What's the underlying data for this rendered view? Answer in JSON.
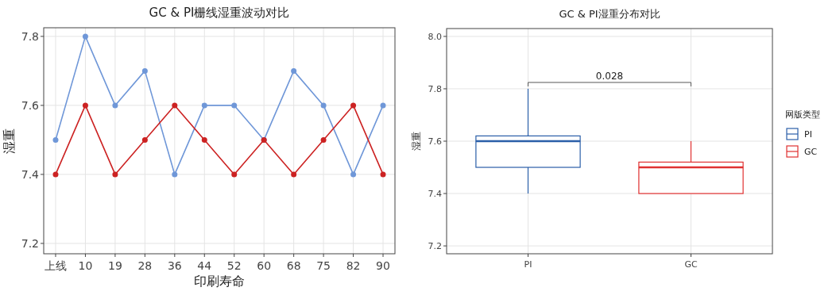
{
  "chart_data": [
    {
      "type": "line",
      "title": "GC & PI栅线湿重波动对比",
      "xlabel": "印刷寿命",
      "ylabel": "湿重",
      "categories": [
        "上线",
        "10",
        "19",
        "28",
        "36",
        "44",
        "52",
        "60",
        "68",
        "75",
        "82",
        "90"
      ],
      "series": [
        {
          "color": "#6f97d8",
          "values": [
            7.5,
            7.8,
            7.6,
            7.7,
            7.4,
            7.6,
            7.6,
            7.5,
            7.7,
            7.6,
            7.4,
            7.6
          ]
        },
        {
          "color": "#cc2222",
          "values": [
            7.4,
            7.6,
            7.4,
            7.5,
            7.6,
            7.5,
            7.4,
            7.5,
            7.4,
            7.5,
            7.6,
            7.4
          ]
        }
      ],
      "ylim": [
        7.17,
        7.825
      ],
      "yticks": [
        7.2,
        7.4,
        7.6,
        7.8
      ],
      "grid": true,
      "marker": "circle"
    },
    {
      "type": "box",
      "title": "GC & PI湿重分布对比",
      "ylabel": "湿重",
      "legend_title": "网版类型",
      "categories": [
        "PI",
        "GC"
      ],
      "series": [
        {
          "name": "PI",
          "color": "#2a5ea8",
          "boxes": [
            {
              "low": 7.4,
              "q1": 7.5,
              "median": 7.6,
              "q3": 7.62,
              "high": 7.8
            },
            null
          ]
        },
        {
          "name": "GC",
          "color": "#e03030",
          "boxes": [
            null,
            {
              "low": 7.4,
              "q1": 7.4,
              "median": 7.5,
              "q3": 7.52,
              "high": 7.6
            }
          ]
        }
      ],
      "ylim": [
        7.17,
        8.03
      ],
      "yticks": [
        7.2,
        7.4,
        7.6,
        7.8,
        {
          "value": 8,
          "label": "8.0"
        }
      ],
      "grid": true,
      "legend": "right",
      "annotations": [
        "0.028"
      ]
    }
  ]
}
